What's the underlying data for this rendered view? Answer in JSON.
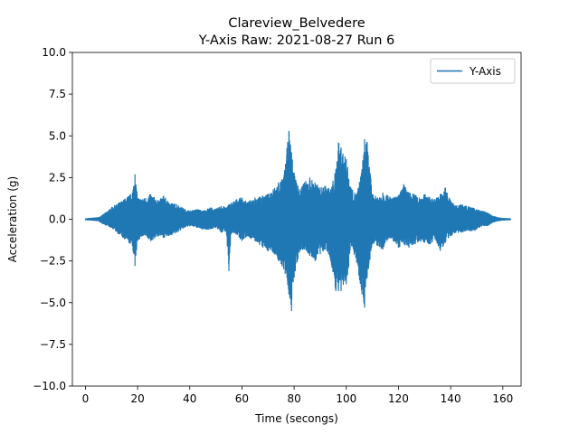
{
  "chart_data": {
    "type": "line",
    "title": "Clareview_Belvedere",
    "subtitle": "Y-Axis Raw: 2021-08-27 Run 6",
    "xlabel": "Time (secongs)",
    "ylabel": "Acceleration (g)",
    "xlim": [
      -5,
      167
    ],
    "ylim": [
      -10,
      10
    ],
    "xticks": [
      0,
      20,
      40,
      60,
      80,
      100,
      120,
      140,
      160
    ],
    "xtick_labels": [
      "0",
      "20",
      "40",
      "60",
      "80",
      "100",
      "120",
      "140",
      "160"
    ],
    "yticks": [
      -10,
      -7.5,
      -5,
      -2.5,
      0,
      2.5,
      5,
      7.5,
      10
    ],
    "ytick_labels": [
      "−10.0",
      "−7.5",
      "−5.0",
      "−2.5",
      "0.0",
      "2.5",
      "5.0",
      "7.5",
      "10.0"
    ],
    "grid": false,
    "legend_position": "top-right",
    "color": "#1f77b4",
    "series": [
      {
        "name": "Y-Axis",
        "x": [
          0,
          5,
          7,
          10,
          15,
          18,
          19,
          20,
          22,
          25,
          28,
          30,
          32,
          35,
          38,
          40,
          43,
          45,
          48,
          50,
          52,
          54,
          55,
          56,
          58,
          60,
          62,
          65,
          68,
          70,
          72,
          74,
          76,
          78,
          79,
          80,
          82,
          84,
          86,
          88,
          90,
          92,
          94,
          96,
          97,
          98,
          100,
          102,
          104,
          106,
          107,
          108,
          110,
          112,
          114,
          116,
          118,
          120,
          122,
          124,
          126,
          128,
          130,
          132,
          134,
          136,
          138,
          140,
          142,
          144,
          146,
          148,
          150,
          152,
          154,
          156,
          158,
          160,
          163
        ],
        "max": [
          0.03,
          0.1,
          0.3,
          0.7,
          1.2,
          1.6,
          2.7,
          1.3,
          1.2,
          1.5,
          1.1,
          1.4,
          1.0,
          0.9,
          0.6,
          0.5,
          0.6,
          0.5,
          0.7,
          0.6,
          0.8,
          0.7,
          0.9,
          1.0,
          1.2,
          1.3,
          1.0,
          1.3,
          1.4,
          1.5,
          1.8,
          2.2,
          2.5,
          5.3,
          4.0,
          2.8,
          1.8,
          2.2,
          2.5,
          2.2,
          1.9,
          2.0,
          1.8,
          3.0,
          4.6,
          4.3,
          3.6,
          1.8,
          1.5,
          3.0,
          4.8,
          4.6,
          1.5,
          1.3,
          1.6,
          1.4,
          1.3,
          1.4,
          2.1,
          1.6,
          1.5,
          1.3,
          1.5,
          1.3,
          1.2,
          1.5,
          1.9,
          1.1,
          0.8,
          0.9,
          0.8,
          0.7,
          0.6,
          0.5,
          0.4,
          0.2,
          0.1,
          0.05,
          0.03
        ],
        "min": [
          -0.03,
          -0.1,
          -0.3,
          -0.5,
          -1.2,
          -1.6,
          -2.8,
          -1.3,
          -1.0,
          -1.3,
          -1.0,
          -1.1,
          -1.0,
          -0.8,
          -0.5,
          -0.4,
          -0.5,
          -0.6,
          -0.6,
          -0.5,
          -0.8,
          -0.7,
          -3.1,
          -0.8,
          -0.9,
          -1.3,
          -1.0,
          -1.3,
          -1.7,
          -1.9,
          -2.0,
          -2.5,
          -3.0,
          -4.5,
          -5.5,
          -3.5,
          -2.0,
          -1.8,
          -2.2,
          -2.5,
          -2.1,
          -1.8,
          -2.5,
          -4.3,
          -4.3,
          -4.3,
          -3.9,
          -1.6,
          -2.6,
          -4.5,
          -5.3,
          -3.5,
          -1.5,
          -1.6,
          -1.8,
          -1.2,
          -1.3,
          -1.7,
          -1.5,
          -1.7,
          -1.5,
          -1.3,
          -1.4,
          -1.5,
          -1.2,
          -1.9,
          -1.4,
          -1.0,
          -0.8,
          -0.8,
          -0.7,
          -0.7,
          -0.6,
          -0.4,
          -0.4,
          -0.2,
          -0.1,
          -0.05,
          -0.03
        ]
      }
    ]
  }
}
